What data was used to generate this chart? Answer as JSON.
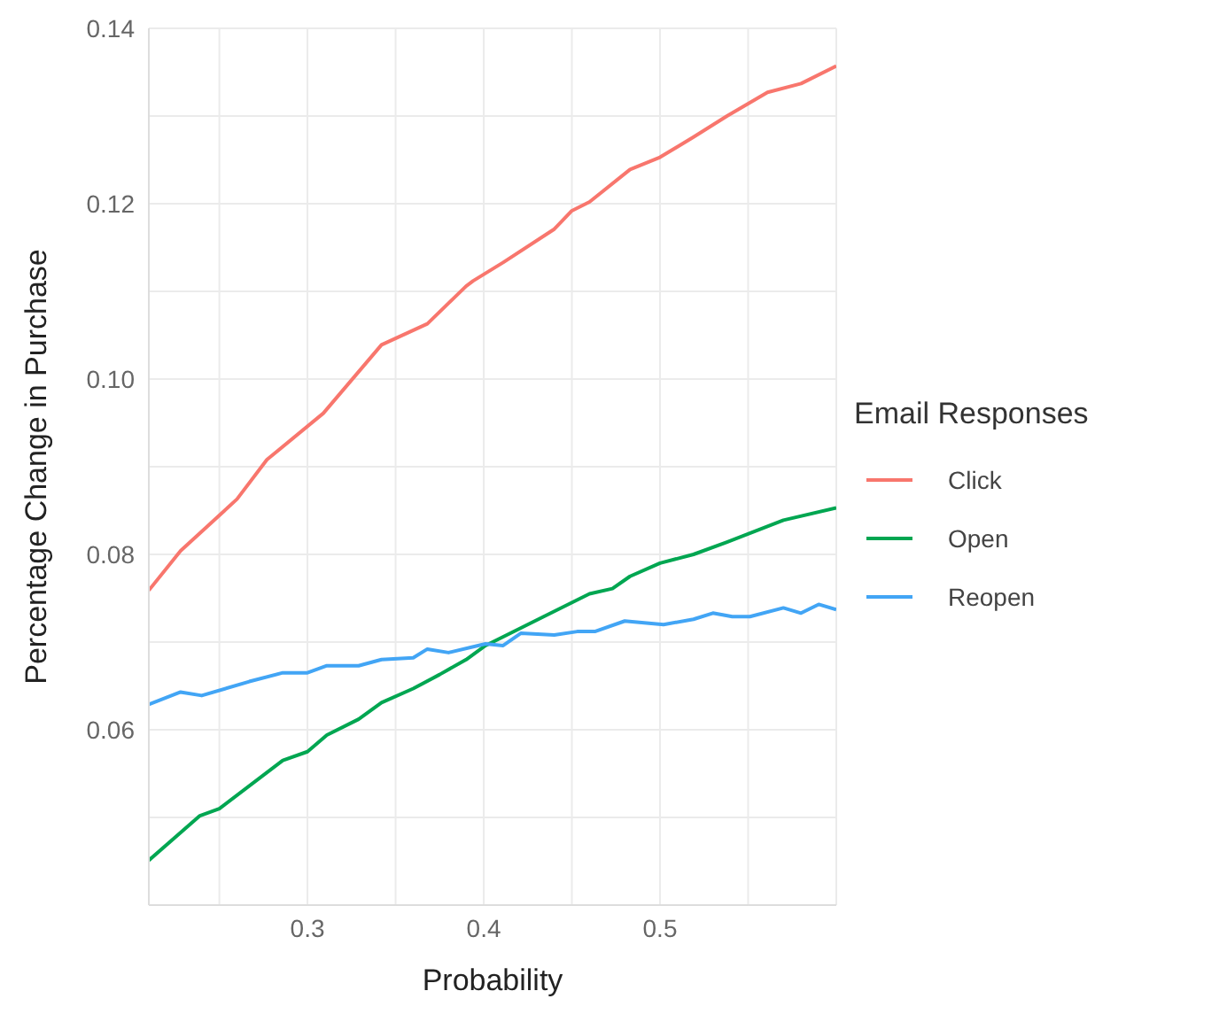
{
  "chart_data": {
    "type": "line",
    "xlabel": "Probability",
    "ylabel": "Percentage Change in Purchase",
    "legend_title": "Email Responses",
    "legend": "right",
    "grid": true,
    "marker": "none",
    "line_style": "solid",
    "xlim": [
      0.21,
      0.6
    ],
    "ylim": [
      0.04,
      0.14
    ],
    "xticks": [
      {
        "value": 0.25,
        "label": null
      },
      0.3,
      {
        "value": 0.35,
        "label": null
      },
      0.4,
      {
        "value": 0.45,
        "label": null
      },
      0.5,
      {
        "value": 0.55,
        "label": null
      }
    ],
    "yticks": [
      {
        "value": 0.05,
        "label": null
      },
      0.06,
      {
        "value": 0.07,
        "label": null
      },
      "0.08",
      {
        "value": 0.09,
        "label": null
      },
      "0.10",
      {
        "value": 0.11,
        "label": null
      },
      0.12,
      {
        "value": 0.13,
        "label": null
      },
      0.14
    ],
    "series": [
      {
        "name": "Click",
        "color": "#f8766d",
        "x": [
          0.21,
          0.228,
          0.26,
          0.277,
          0.309,
          0.342,
          0.368,
          0.39,
          0.394,
          0.411,
          0.44,
          0.45,
          0.46,
          0.483,
          0.5,
          0.519,
          0.538,
          0.561,
          0.58,
          0.6
        ],
        "values": [
          0.0759,
          0.0804,
          0.0863,
          0.0908,
          0.0961,
          0.1039,
          0.1063,
          0.1106,
          0.1112,
          0.1133,
          0.1171,
          0.1192,
          0.1202,
          0.1239,
          0.1253,
          0.1276,
          0.13,
          0.1327,
          0.1337,
          0.1357
        ]
      },
      {
        "name": "Open",
        "color": "#00a651",
        "x": [
          0.21,
          0.239,
          0.25,
          0.286,
          0.3,
          0.311,
          0.329,
          0.342,
          0.36,
          0.375,
          0.39,
          0.401,
          0.434,
          0.46,
          0.473,
          0.483,
          0.5,
          0.519,
          0.538,
          0.57,
          0.6
        ],
        "values": [
          0.0451,
          0.0502,
          0.051,
          0.0565,
          0.0575,
          0.0594,
          0.0612,
          0.0631,
          0.0647,
          0.0663,
          0.068,
          0.0696,
          0.0729,
          0.0755,
          0.0761,
          0.0775,
          0.079,
          0.08,
          0.0814,
          0.0839,
          0.0853
        ]
      },
      {
        "name": "Reopen",
        "color": "#42a5f5",
        "x": [
          0.21,
          0.228,
          0.24,
          0.267,
          0.286,
          0.3,
          0.311,
          0.329,
          0.342,
          0.36,
          0.368,
          0.38,
          0.401,
          0.411,
          0.421,
          0.44,
          0.453,
          0.463,
          0.48,
          0.502,
          0.519,
          0.53,
          0.541,
          0.551,
          0.57,
          0.58,
          0.59,
          0.6
        ],
        "values": [
          0.0629,
          0.0643,
          0.0639,
          0.0655,
          0.0665,
          0.0665,
          0.0673,
          0.0673,
          0.068,
          0.0682,
          0.0692,
          0.0688,
          0.0698,
          0.0696,
          0.071,
          0.0708,
          0.0712,
          0.0712,
          0.0724,
          0.072,
          0.0726,
          0.0733,
          0.0729,
          0.0729,
          0.0739,
          0.0733,
          0.0743,
          0.0737
        ]
      }
    ]
  }
}
